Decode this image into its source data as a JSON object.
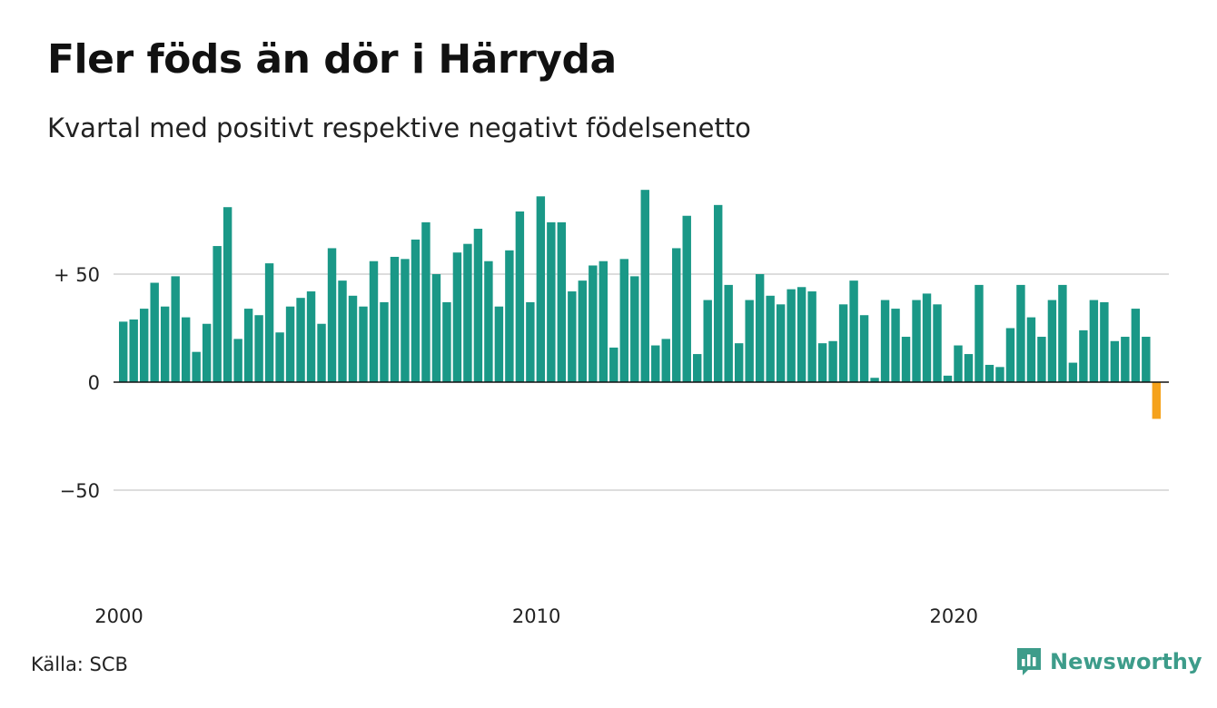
{
  "title": "Fler föds än dör i Härryda",
  "subtitle": "Kvartal med positivt respektive negativt födelsenetto",
  "source": "Källa: SCB",
  "brand": "Newsworthy",
  "brand_icon": "newsworthy-logo-icon",
  "colors": {
    "positive": "#1a9887",
    "negative": "#f5a21b",
    "grid": "#dddddd",
    "axis": "#111111",
    "brand": "#3d9c8a"
  },
  "chart_data": {
    "type": "bar",
    "title": "Fler föds än dör i Härryda",
    "subtitle": "Kvartal med positivt respektive negativt födelsenetto",
    "xlabel": "",
    "ylabel": "",
    "x_start": 2000,
    "x_step": 0.25,
    "ylim": [
      -100,
      90
    ],
    "yticks": [
      {
        "value": 50,
        "label": "+ 50"
      },
      {
        "value": 0,
        "label": "0"
      },
      {
        "value": -50,
        "label": "−50"
      }
    ],
    "xticks": [
      {
        "value": 2000,
        "label": "2000"
      },
      {
        "value": 2010,
        "label": "2010"
      },
      {
        "value": 2020,
        "label": "2020"
      }
    ],
    "grid": true,
    "values": [
      28,
      29,
      34,
      46,
      35,
      49,
      30,
      14,
      27,
      63,
      81,
      20,
      34,
      31,
      55,
      23,
      35,
      39,
      42,
      27,
      62,
      47,
      40,
      35,
      56,
      37,
      58,
      57,
      66,
      74,
      50,
      37,
      60,
      64,
      71,
      56,
      35,
      61,
      79,
      37,
      86,
      74,
      74,
      42,
      47,
      54,
      56,
      16,
      57,
      49,
      89,
      17,
      20,
      62,
      77,
      13,
      38,
      82,
      45,
      18,
      38,
      50,
      40,
      36,
      43,
      44,
      42,
      18,
      19,
      36,
      47,
      31,
      2,
      38,
      34,
      21,
      38,
      41,
      36,
      3,
      17,
      13,
      45,
      8,
      7,
      25,
      45,
      30,
      21,
      38,
      45,
      9,
      24,
      38,
      37,
      19,
      21,
      34,
      21,
      -17
    ]
  }
}
